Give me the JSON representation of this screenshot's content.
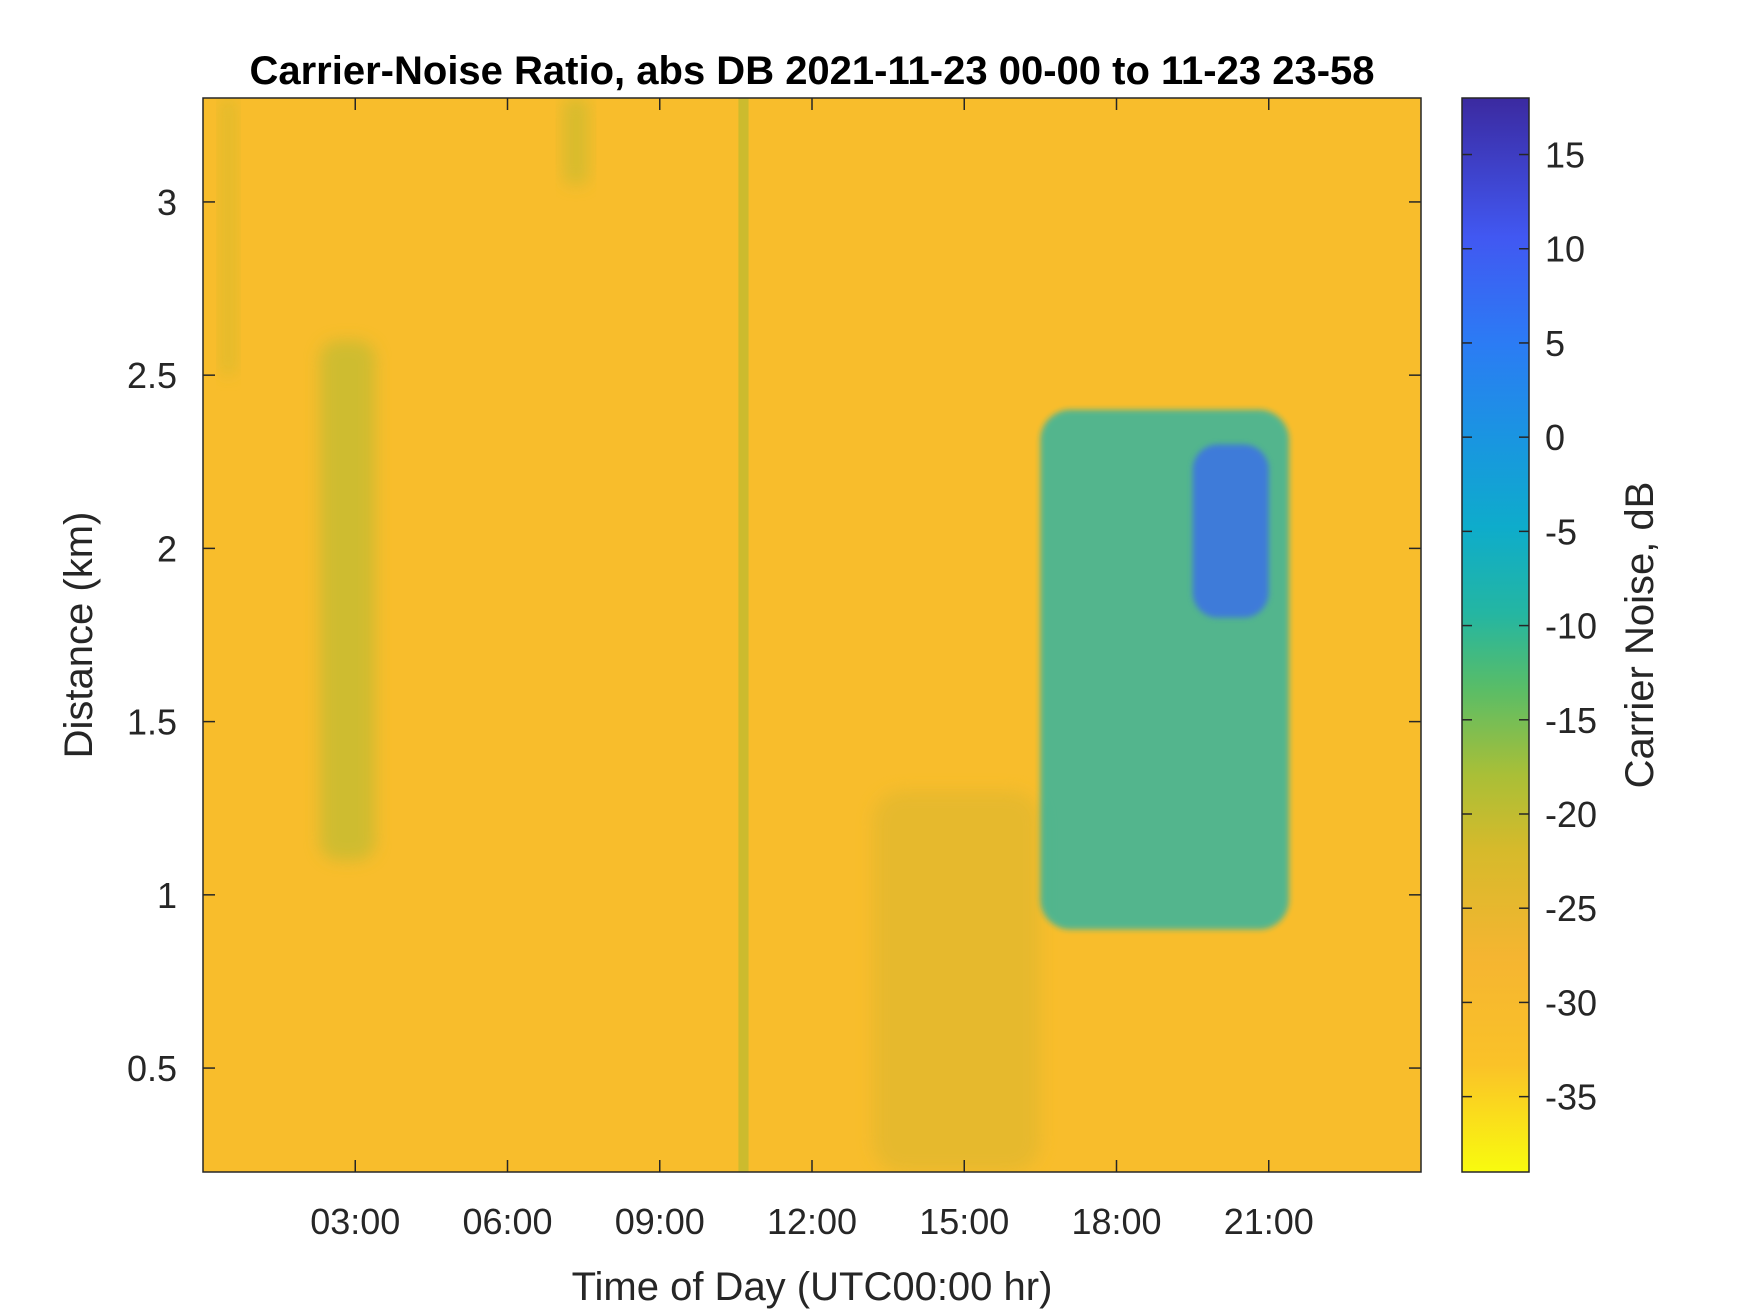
{
  "chart_data": {
    "type": "heatmap",
    "title": "Carrier-Noise Ratio, abs DB 2021-11-23 00-00 to 11-23 23-58",
    "xlabel": "Time of Day (UTC00:00 hr)",
    "ylabel": "Distance (km)",
    "xlim_hours": [
      0,
      24
    ],
    "ylim_km": [
      0.2,
      3.3
    ],
    "x_ticks": [
      {
        "value": 3,
        "label": "03:00"
      },
      {
        "value": 6,
        "label": "06:00"
      },
      {
        "value": 9,
        "label": "09:00"
      },
      {
        "value": 12,
        "label": "12:00"
      },
      {
        "value": 15,
        "label": "15:00"
      },
      {
        "value": 18,
        "label": "18:00"
      },
      {
        "value": 21,
        "label": "21:00"
      }
    ],
    "y_ticks": [
      {
        "value": 0.5,
        "label": "0.5"
      },
      {
        "value": 1,
        "label": "1"
      },
      {
        "value": 1.5,
        "label": "1.5"
      },
      {
        "value": 2,
        "label": "2"
      },
      {
        "value": 2.5,
        "label": "2.5"
      },
      {
        "value": 3,
        "label": "3"
      }
    ],
    "colorbar": {
      "label": "Carrier Noise, dB",
      "range": [
        -39,
        18
      ],
      "ticks": [
        {
          "value": 15,
          "label": "15"
        },
        {
          "value": 10,
          "label": "10"
        },
        {
          "value": 5,
          "label": "5"
        },
        {
          "value": 0,
          "label": "0"
        },
        {
          "value": -5,
          "label": "-5"
        },
        {
          "value": -10,
          "label": "-10"
        },
        {
          "value": -15,
          "label": "-15"
        },
        {
          "value": -20,
          "label": "-20"
        },
        {
          "value": -25,
          "label": "-25"
        },
        {
          "value": -30,
          "label": "-30"
        },
        {
          "value": -35,
          "label": "-35"
        }
      ],
      "colormap": "parula-reversed"
    },
    "background_value_db": -31,
    "features": [
      {
        "name": "vertical stripe",
        "x_start": 10.55,
        "x_end": 10.75,
        "y_start": 0.2,
        "y_end": 3.3,
        "value_db": -21
      },
      {
        "name": "early plume",
        "x_start": 2.3,
        "x_end": 3.4,
        "y_start": 1.1,
        "y_end": 2.6,
        "value_db": -20
      },
      {
        "name": "upper left streak",
        "x_start": 0.35,
        "x_end": 0.65,
        "y_start": 2.5,
        "y_end": 3.3,
        "value_db": -22
      },
      {
        "name": "morning top patch",
        "x_start": 7.1,
        "x_end": 7.6,
        "y_start": 3.05,
        "y_end": 3.3,
        "value_db": -21
      },
      {
        "name": "afternoon cloud base",
        "x_start": 13.2,
        "x_end": 16.5,
        "y_start": 0.2,
        "y_end": 1.3,
        "value_db": -24
      },
      {
        "name": "evening cloud",
        "x_start": 16.5,
        "x_end": 21.4,
        "y_start": 0.9,
        "y_end": 2.4,
        "value_db": -8
      },
      {
        "name": "evening peak",
        "x_start": 19.5,
        "x_end": 21,
        "y_start": 1.8,
        "y_end": 2.3,
        "value_db": 8
      }
    ]
  }
}
